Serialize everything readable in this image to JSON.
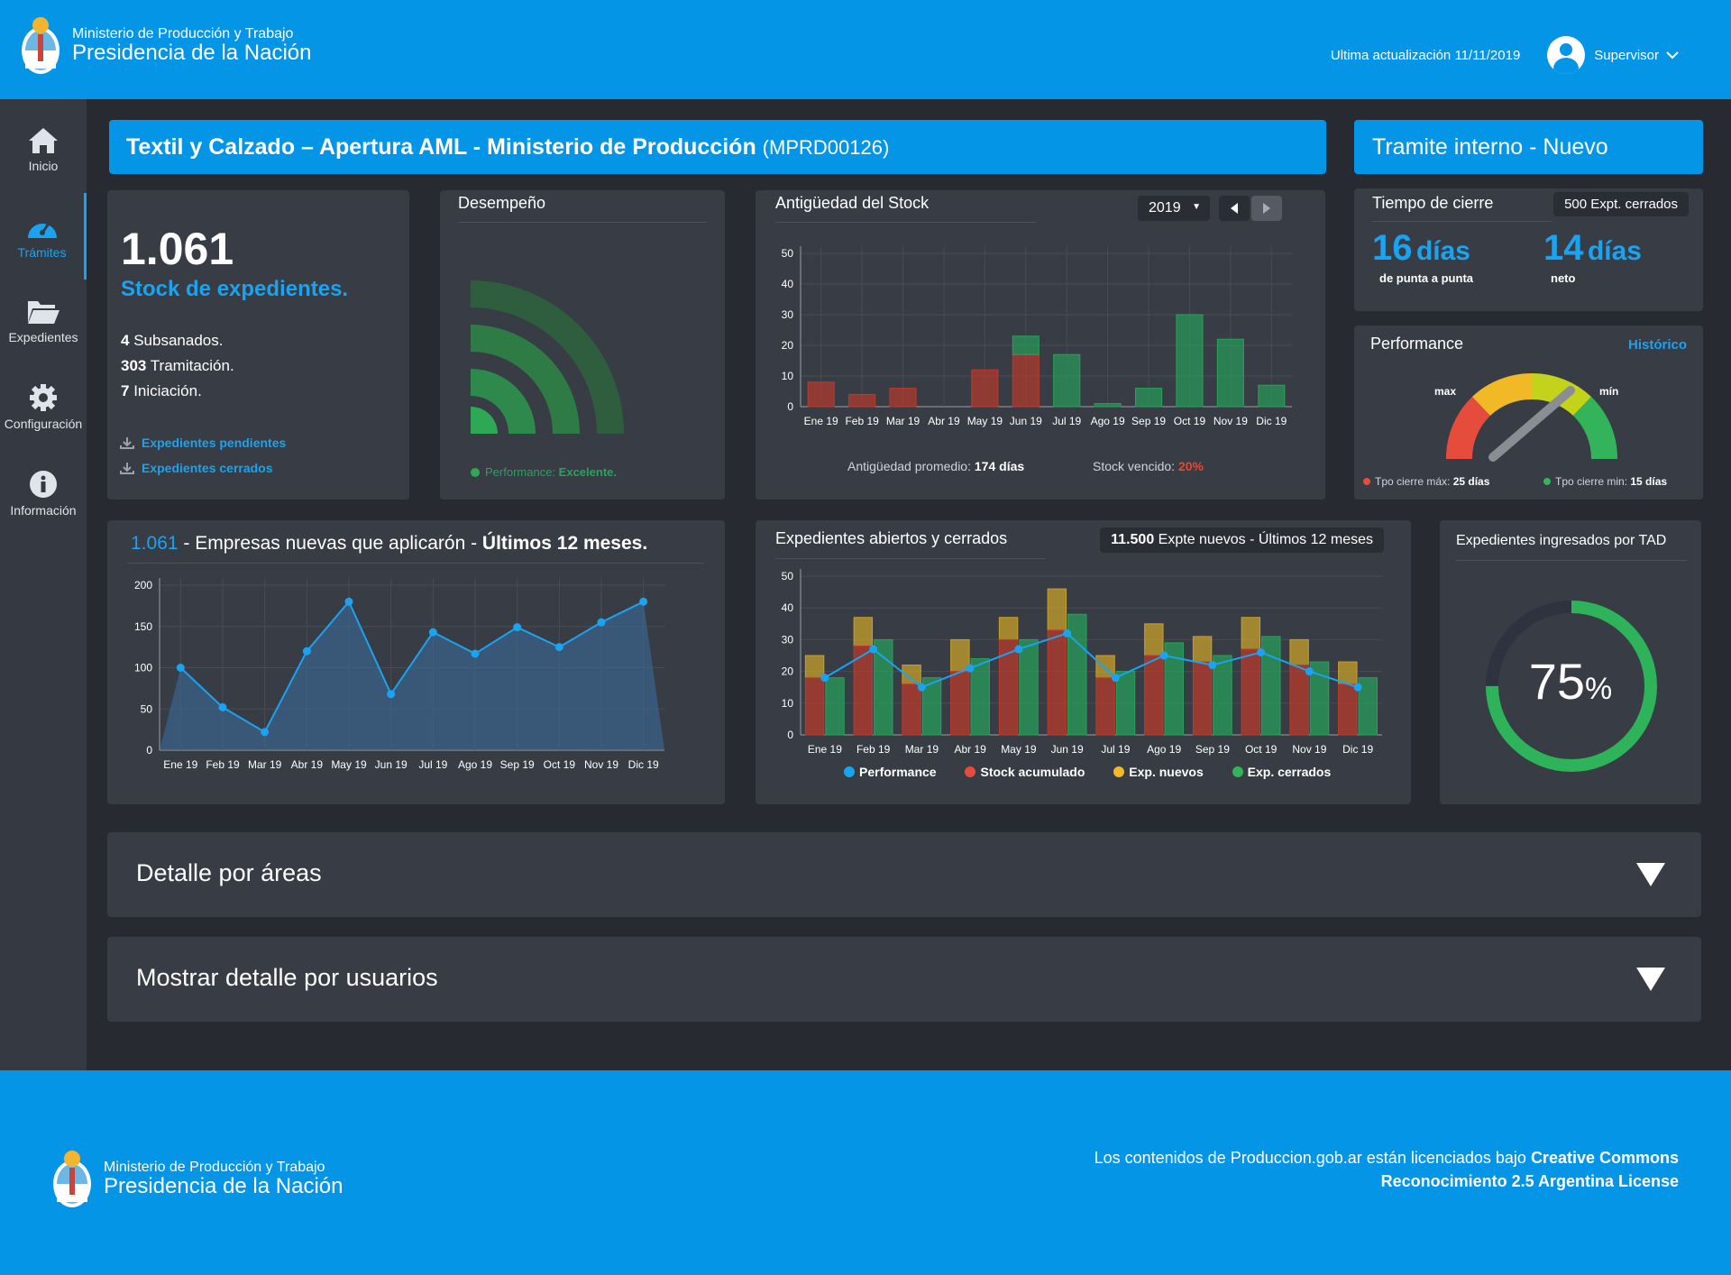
{
  "header": {
    "ministry": "Ministerio de Producción y Trabajo",
    "presidency": "Presidencia de la Nación",
    "last_update": "Ultima actualización 11/11/2019",
    "user": "Supervisor"
  },
  "sidebar": {
    "items": [
      {
        "label": "Inicio",
        "icon": "home-icon"
      },
      {
        "label": "Trámites",
        "icon": "speedometer-icon"
      },
      {
        "label": "Expedientes",
        "icon": "folder-icon"
      },
      {
        "label": "Configuración",
        "icon": "gear-icon"
      },
      {
        "label": "Información",
        "icon": "info-icon"
      }
    ]
  },
  "title_bar": {
    "title": "Textil y Calzado – Apertura AML - Ministerio de Producción",
    "code": "(MPRD00126)",
    "right": "Tramite interno - Nuevo"
  },
  "stock": {
    "total": "1.061",
    "label": "Stock de expedientes.",
    "rows": [
      {
        "num": "4",
        "text": "Subsanados."
      },
      {
        "num": "303",
        "text": "Tramitación."
      },
      {
        "num": "7",
        "text": "Iniciación."
      }
    ],
    "link_pending": "Expedientes pendientes",
    "link_closed": "Expedientes cerrados"
  },
  "desempeno": {
    "title": "Desempeño",
    "perf_label": "Performance:",
    "perf_value": "Excelente."
  },
  "antiguedad": {
    "title": "Antigüedad del Stock",
    "year": "2019",
    "avg_label": "Antigüedad promedio:",
    "avg_value": "174 días",
    "expired_label": "Stock vencido:",
    "expired_value": "20%"
  },
  "tiempo": {
    "title": "Tiempo de cierre",
    "badge": "500 Expt. cerrados",
    "v1": "16",
    "u1": "días",
    "s1": "de punta a punta",
    "v2": "14",
    "u2": "días",
    "s2": "neto"
  },
  "performance": {
    "title": "Performance",
    "link": "Histórico",
    "max": "max",
    "min": "mín",
    "legend_max_label": "Tpo cierre máx:",
    "legend_max_value": "25 días",
    "legend_min_label": "Tpo cierre min:",
    "legend_min_value": "15 días"
  },
  "empresas": {
    "count": "1.061",
    "text": "- Empresas nuevas que aplicarón -",
    "period": "Últimos 12 meses."
  },
  "abiertos": {
    "title": "Expedientes abiertos y cerrados",
    "badge_num": "11.500",
    "badge_text": "Expte nuevos - Últimos 12 meses",
    "legend": [
      "Performance",
      "Stock acumulado",
      "Exp. nuevos",
      "Exp. cerrados"
    ]
  },
  "tad": {
    "title": "Expedientes ingresados por TAD",
    "value": "75",
    "unit": "%"
  },
  "collapsibles": {
    "areas": "Detalle por áreas",
    "users": "Mostrar detalle por usuarios"
  },
  "footer": {
    "ministry": "Ministerio de Producción y Trabajo",
    "presidency": "Presidencia de la Nación",
    "license_text": "Los contenidos de Produccion.gob.ar están licenciados bajo",
    "license_strong1": "Creative Commons",
    "license_strong2": "Reconocimiento 2.5 Argentina License"
  },
  "colors": {
    "brand_blue": "#0595e6",
    "card": "#383c45",
    "red": "#c0392b",
    "green": "#27a35a",
    "yellow": "#c7a02a",
    "line": "#1aa3f0"
  },
  "chart_data": [
    {
      "type": "bar",
      "id": "antiguedad",
      "categories": [
        "Ene 19",
        "Feb 19",
        "Mar 19",
        "Abr 19",
        "May 19",
        "Jun 19",
        "Jul 19",
        "Ago 19",
        "Sep 19",
        "Oct 19",
        "Nov 19",
        "Dic 19"
      ],
      "series": [
        {
          "values": [
            8,
            4,
            6,
            0,
            12,
            17,
            0,
            0,
            0,
            0,
            0,
            0
          ]
        },
        {
          "values": [
            0,
            0,
            0,
            0,
            0,
            6,
            17,
            1,
            6,
            30,
            22,
            7
          ]
        }
      ],
      "yticks": [
        0,
        10,
        20,
        30,
        40,
        50
      ],
      "ylim": [
        0,
        50
      ]
    },
    {
      "type": "area",
      "id": "empresas",
      "categories": [
        "Ene 19",
        "Feb 19",
        "Mar 19",
        "Abr 19",
        "May 19",
        "Jun 19",
        "Jul 19",
        "Ago 19",
        "Sep 19",
        "Oct 19",
        "Nov 19",
        "Dic 19"
      ],
      "values": [
        100,
        52,
        22,
        120,
        180,
        68,
        143,
        117,
        149,
        125,
        155,
        180
      ],
      "yticks": [
        0,
        50,
        100,
        150,
        200
      ],
      "ylim": [
        0,
        200
      ]
    },
    {
      "type": "bar",
      "id": "abiertos",
      "categories": [
        "Ene 19",
        "Feb 19",
        "Mar 19",
        "Abr 19",
        "May 19",
        "Jun 19",
        "Jul 19",
        "Ago 19",
        "Sep 19",
        "Oct 19",
        "Nov 19",
        "Dic 19"
      ],
      "series": [
        {
          "name": "Stock acumulado",
          "values": [
            18,
            28,
            16,
            20,
            30,
            33,
            18,
            25,
            23,
            27,
            22,
            16
          ]
        },
        {
          "name": "Exp. nuevos",
          "values": [
            25,
            37,
            22,
            30,
            37,
            46,
            25,
            35,
            31,
            37,
            30,
            23
          ]
        },
        {
          "name": "Exp. cerrados",
          "values": [
            18,
            30,
            18,
            24,
            30,
            38,
            20,
            29,
            25,
            31,
            23,
            18
          ]
        },
        {
          "name": "Performance",
          "values": [
            18,
            27,
            15,
            21,
            27,
            32,
            18,
            25,
            22,
            26,
            20,
            15
          ]
        }
      ],
      "yticks": [
        0,
        10,
        20,
        30,
        40,
        50
      ],
      "ylim": [
        0,
        50
      ]
    }
  ]
}
